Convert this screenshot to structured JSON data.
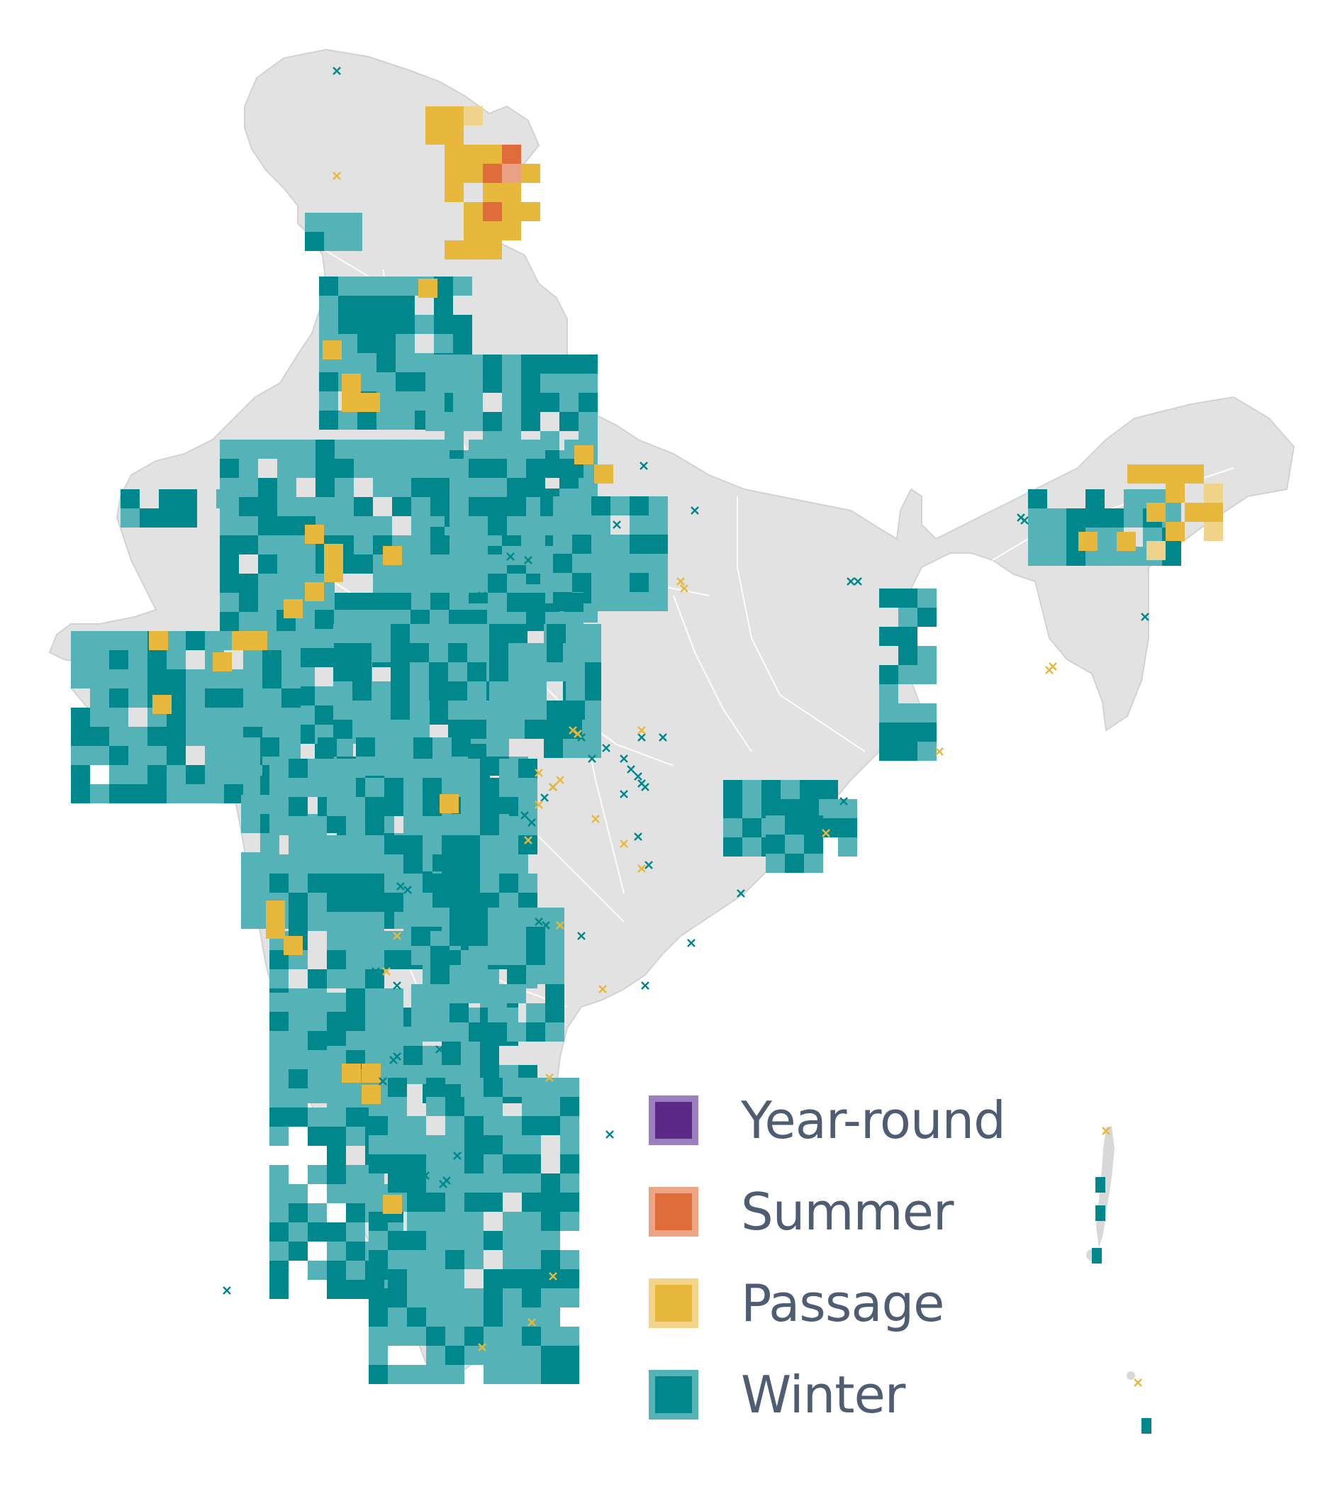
{
  "legend": {
    "items": [
      {
        "label": "Year-round",
        "fill": "#5b2a86",
        "border": "#9c7fbf"
      },
      {
        "label": "Summer",
        "fill": "#e06b3b",
        "border": "#eda585"
      },
      {
        "label": "Passage",
        "fill": "#e8b83c",
        "border": "#f3d58a"
      },
      {
        "label": "Winter",
        "fill": "#00878b",
        "border": "#55b2b6"
      }
    ]
  },
  "colors": {
    "land": "#e2e2e2",
    "boundary": "#ffffff",
    "winter_dense": "#00878b",
    "winter_light": "#55b2b6",
    "passage": "#e8b83c",
    "passage_light": "#f0d38a",
    "summer": "#e06b3b",
    "summer_light": "#eba183"
  }
}
